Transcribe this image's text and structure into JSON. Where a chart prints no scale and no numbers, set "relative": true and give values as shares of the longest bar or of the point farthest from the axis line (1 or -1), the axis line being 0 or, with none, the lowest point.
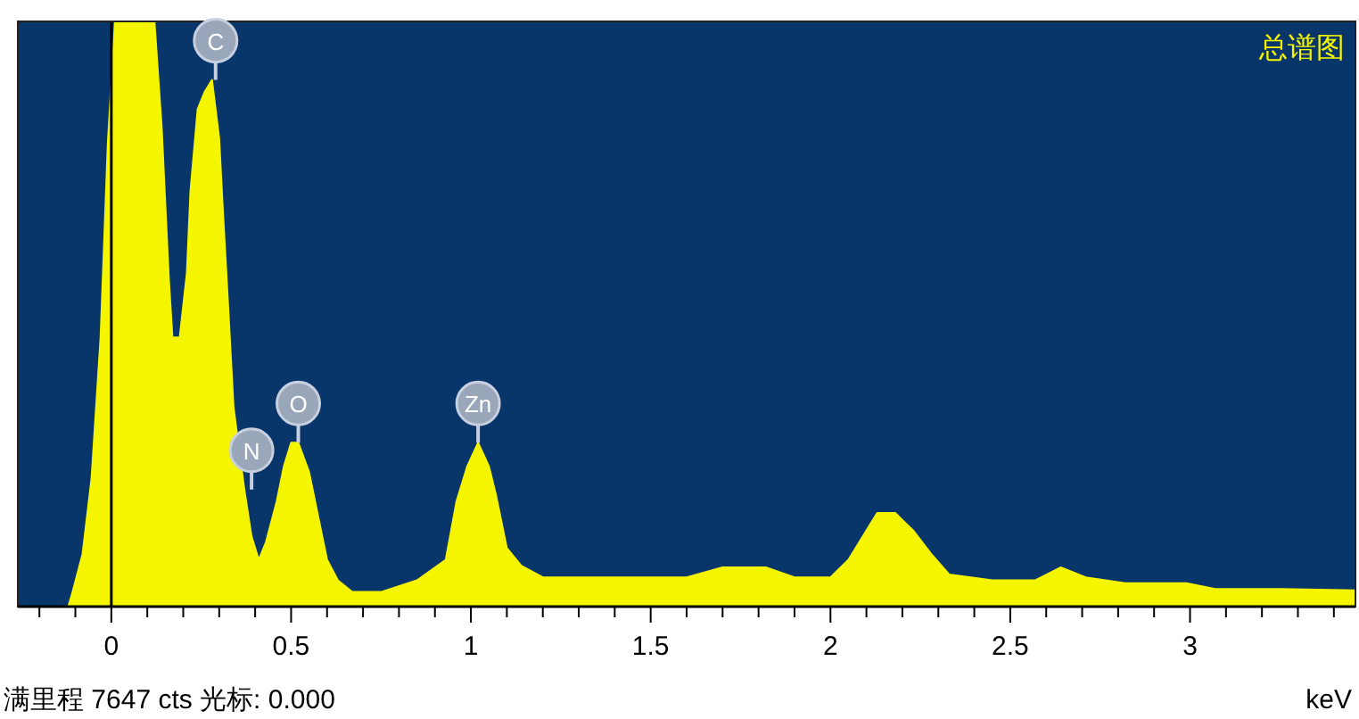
{
  "chart_data": {
    "type": "area",
    "title": "总谱图",
    "xlabel": "keV",
    "relative": true,
    "xlim": [
      -0.26,
      3.46
    ],
    "xticks": [
      {
        "value": -0.2,
        "label": null
      },
      {
        "value": -0.1,
        "label": null
      },
      0,
      {
        "value": 0.1,
        "label": null
      },
      {
        "value": 0.2,
        "label": null
      },
      {
        "value": 0.3,
        "label": null
      },
      {
        "value": 0.4,
        "label": null
      },
      0.5,
      {
        "value": 0.6,
        "label": null
      },
      {
        "value": 0.7,
        "label": null
      },
      {
        "value": 0.8,
        "label": null
      },
      {
        "value": 0.9,
        "label": null
      },
      1,
      {
        "value": 1.1,
        "label": null
      },
      {
        "value": 1.2,
        "label": null
      },
      {
        "value": 1.3,
        "label": null
      },
      {
        "value": 1.4,
        "label": null
      },
      1.5,
      {
        "value": 1.6,
        "label": null
      },
      {
        "value": 1.7,
        "label": null
      },
      {
        "value": 1.8,
        "label": null
      },
      {
        "value": 1.9,
        "label": null
      },
      2,
      {
        "value": 2.1,
        "label": null
      },
      {
        "value": 2.2,
        "label": null
      },
      {
        "value": 2.3,
        "label": null
      },
      {
        "value": 2.4,
        "label": null
      },
      2.5,
      {
        "value": 2.6,
        "label": null
      },
      {
        "value": 2.7,
        "label": null
      },
      {
        "value": 2.8,
        "label": null
      },
      {
        "value": 2.9,
        "label": null
      },
      3,
      {
        "value": 3.1,
        "label": null
      },
      {
        "value": 3.2,
        "label": null
      },
      {
        "value": 3.3,
        "label": null
      },
      {
        "value": 3.4,
        "label": null
      }
    ],
    "x": [
      -0.26,
      -0.12,
      -0.11,
      -0.08,
      -0.055,
      -0.03,
      -0.01,
      0.01,
      0.12,
      0.14,
      0.16,
      0.17,
      0.19,
      0.21,
      0.22,
      0.24,
      0.26,
      0.28,
      0.3,
      0.31,
      0.32,
      0.34,
      0.37,
      0.39,
      0.41,
      0.43,
      0.46,
      0.48,
      0.5,
      0.52,
      0.55,
      0.58,
      0.6,
      0.63,
      0.67,
      0.75,
      0.85,
      0.93,
      0.96,
      0.99,
      1.02,
      1.05,
      1.07,
      1.1,
      1.14,
      1.2,
      1.4,
      1.6,
      1.7,
      1.82,
      1.9,
      2.0,
      2.05,
      2.08,
      2.13,
      2.18,
      2.23,
      2.28,
      2.33,
      2.45,
      2.57,
      2.64,
      2.71,
      2.82,
      2.99,
      3.07,
      3.25,
      3.46
    ],
    "series": [
      {
        "color": "#f5f500",
        "values": [
          0,
          0,
          0.02,
          0.09,
          0.22,
          0.46,
          0.79,
          1,
          1,
          0.82,
          0.56,
          0.46,
          0.46,
          0.57,
          0.71,
          0.85,
          0.88,
          0.9,
          0.8,
          0.68,
          0.57,
          0.34,
          0.2,
          0.12,
          0.08,
          0.11,
          0.18,
          0.24,
          0.28,
          0.28,
          0.23,
          0.14,
          0.08,
          0.045,
          0.025,
          0.025,
          0.045,
          0.08,
          0.18,
          0.24,
          0.28,
          0.24,
          0.19,
          0.1,
          0.07,
          0.05,
          0.05,
          0.05,
          0.067,
          0.067,
          0.05,
          0.05,
          0.08,
          0.11,
          0.16,
          0.16,
          0.13,
          0.09,
          0.055,
          0.045,
          0.045,
          0.067,
          0.05,
          0.04,
          0.04,
          0.03,
          0.03,
          0.028
        ]
      }
    ],
    "ref_lines": [
      {
        "axis": "x",
        "value": 0,
        "color": "#000000"
      }
    ],
    "annotations": [
      {
        "text": "C",
        "x": 0.29,
        "y": 0.9
      },
      {
        "text": "N",
        "x": 0.39,
        "y": 0.2
      },
      {
        "text": "O",
        "x": 0.52,
        "y": 0.28
      },
      {
        "text": "Zn",
        "x": 1.02,
        "y": 0.28
      },
      "满里程 7647 cts 光标: 0.000"
    ]
  }
}
